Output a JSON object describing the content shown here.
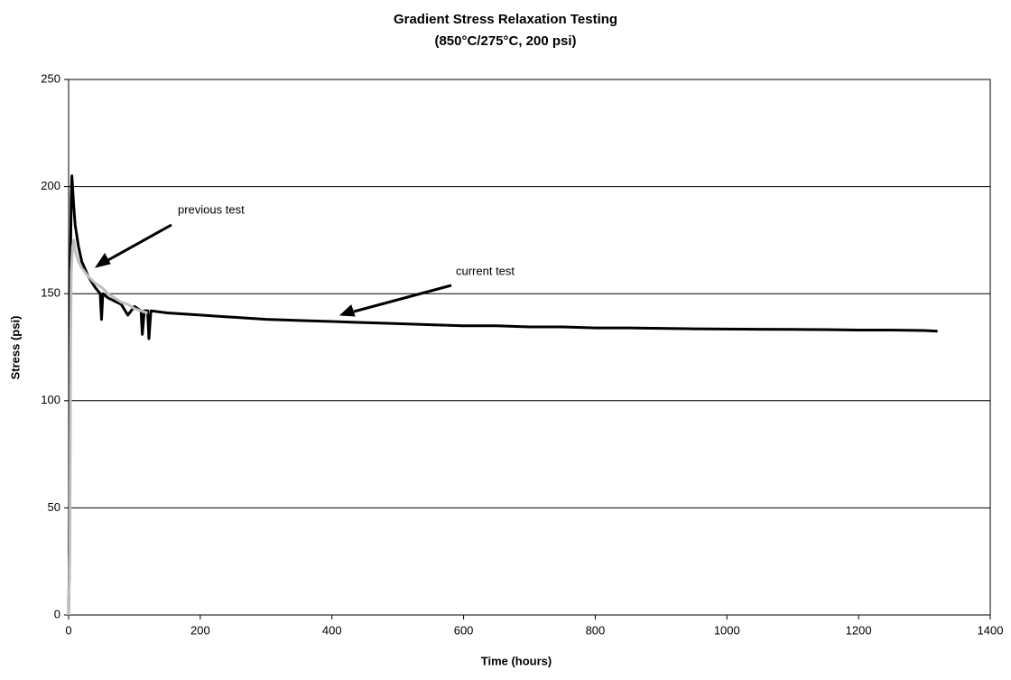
{
  "chart_data": {
    "type": "line",
    "title": "Gradient Stress Relaxation Testing",
    "subtitle": "(850°C/275°C, 200 psi)",
    "x_label": "Time (hours)",
    "y_label": "Stress (psi)",
    "xlim": [
      0,
      1400
    ],
    "xticks": [
      0,
      200,
      400,
      600,
      800,
      1000,
      1200,
      1400
    ],
    "ylim": [
      0,
      250
    ],
    "yticks": [
      0,
      50,
      100,
      150,
      200,
      250
    ],
    "grid": true,
    "series": [
      {
        "name": "current test",
        "color": "#000000",
        "x": [
          0,
          1,
          2,
          3,
          4,
          5,
          6,
          8,
          10,
          15,
          20,
          30,
          40,
          48,
          50,
          52,
          60,
          80,
          90,
          100,
          110,
          112,
          115,
          120,
          122,
          125,
          150,
          200,
          250,
          300,
          350,
          400,
          450,
          500,
          550,
          600,
          650,
          700,
          750,
          800,
          850,
          900,
          950,
          1000,
          1050,
          1100,
          1150,
          1200,
          1250,
          1300,
          1320
        ],
        "values": [
          0,
          20,
          110,
          170,
          195,
          205,
          200,
          190,
          182,
          172,
          165,
          158,
          153,
          150,
          138,
          150,
          148,
          145,
          140,
          144,
          142,
          131,
          142,
          142,
          129,
          142,
          141,
          140,
          139,
          138,
          137.5,
          137,
          136.5,
          136,
          135.5,
          135,
          135,
          134.5,
          134.5,
          134,
          134,
          133.8,
          133.6,
          133.5,
          133.4,
          133.3,
          133.2,
          133,
          133,
          132.8,
          132.5
        ]
      },
      {
        "name": "previous test",
        "color": "#bfbfbf",
        "x": [
          0,
          2,
          3,
          4,
          6,
          8,
          10,
          15,
          20,
          25,
          30,
          40,
          50,
          60,
          70,
          80,
          90,
          100,
          110,
          120
        ],
        "values": [
          0,
          30,
          120,
          160,
          172,
          175,
          170,
          165,
          162,
          160,
          158,
          155,
          153,
          150,
          148,
          146,
          145,
          143,
          142,
          141
        ]
      }
    ]
  }
}
